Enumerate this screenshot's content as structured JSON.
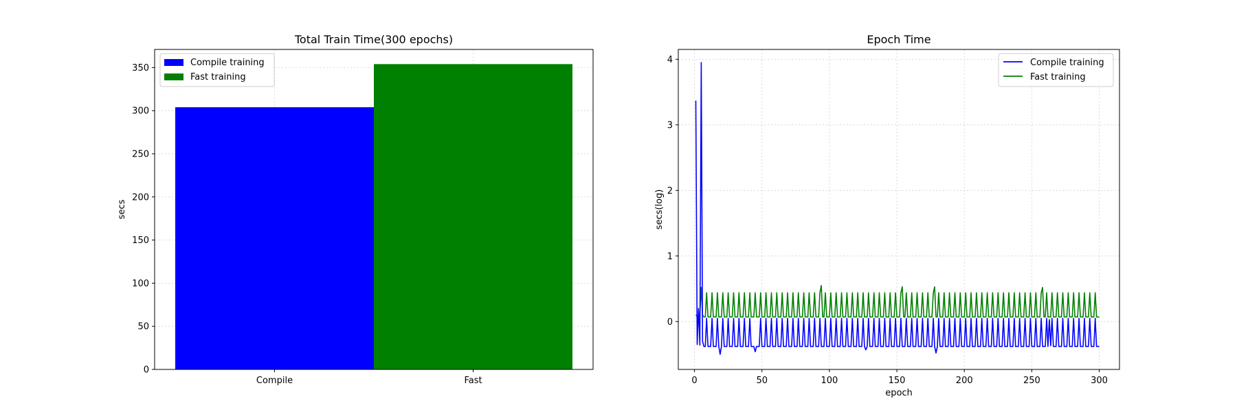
{
  "chart_data": [
    {
      "type": "bar",
      "title": "Total Train Time(300 epochs)",
      "xlabel": "",
      "ylabel": "secs",
      "categories": [
        "Compile",
        "Fast"
      ],
      "series": [
        {
          "name": "Compile training",
          "category": "Compile",
          "value": 304,
          "color": "#0000ff"
        },
        {
          "name": "Fast training",
          "category": "Fast",
          "value": 354,
          "color": "#008000"
        }
      ],
      "ylim": [
        0,
        371
      ],
      "yticks": [
        0,
        50,
        100,
        150,
        200,
        250,
        300,
        350
      ],
      "grid": true,
      "legend": "top-left"
    },
    {
      "type": "line",
      "title": "Epoch Time",
      "xlabel": "epoch",
      "ylabel": "secs(log)",
      "xlim": [
        -12,
        315
      ],
      "ylim": [
        -0.73,
        4.15
      ],
      "xticks": [
        0,
        50,
        100,
        150,
        200,
        250,
        300
      ],
      "yticks": [
        0,
        1,
        2,
        3,
        4
      ],
      "grid": true,
      "legend": "top-right",
      "series": [
        {
          "name": "Compile training",
          "color": "#0000ff",
          "base": -0.38,
          "peak": 0.05,
          "period": 4,
          "spikes": [
            [
              1,
              3.37
            ],
            [
              2,
              -0.35
            ],
            [
              3,
              0.2
            ],
            [
              4,
              -0.36
            ],
            [
              5,
              3.95
            ],
            [
              6,
              -0.3
            ]
          ],
          "dips": [
            [
              19,
              -0.5
            ],
            [
              45,
              -0.46
            ],
            [
              127,
              -0.43
            ],
            [
              179,
              -0.48
            ],
            [
              262,
              -0.38
            ],
            [
              263,
              0.03
            ],
            [
              264,
              -0.37
            ]
          ]
        },
        {
          "name": "Fast training",
          "color": "#008000",
          "base": 0.07,
          "peak": 0.44,
          "period": 4,
          "spikes": [
            [
              1,
              0.1
            ],
            [
              2,
              0.08
            ],
            [
              3,
              0.08
            ],
            [
              4,
              0.1
            ],
            [
              5,
              0.52
            ],
            [
              6,
              0.1
            ],
            [
              94,
              0.55
            ],
            [
              154,
              0.53
            ],
            [
              178,
              0.53
            ],
            [
              258,
              0.52
            ]
          ],
          "dips": []
        }
      ]
    }
  ]
}
